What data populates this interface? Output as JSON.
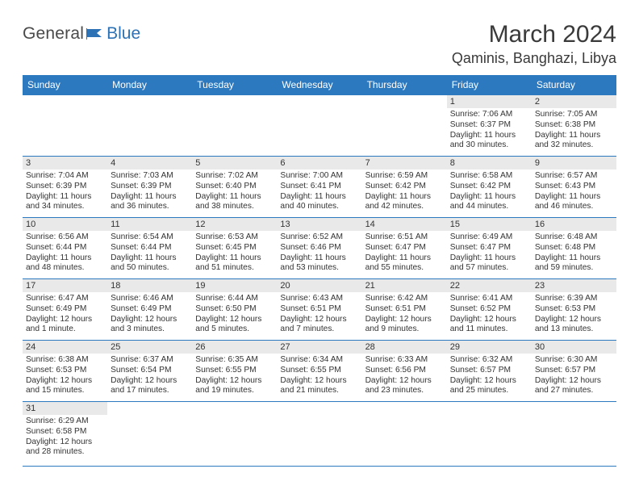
{
  "logo": {
    "text1": "General",
    "text2": "Blue"
  },
  "title": {
    "month": "March 2024",
    "location": "Qaminis, Banghazi, Libya"
  },
  "style": {
    "header_bg": "#2d79bf",
    "header_fg": "#ffffff",
    "daynum_bg": "#e9e9e9",
    "border": "#2d79bf",
    "text": "#333333",
    "logo_gray": "#4a4a4a",
    "logo_blue": "#2d72b5",
    "title_fontsize": 30,
    "location_fontsize": 18,
    "header_fontsize": 12,
    "cell_fontsize": 10.2
  },
  "weekdays": [
    "Sunday",
    "Monday",
    "Tuesday",
    "Wednesday",
    "Thursday",
    "Friday",
    "Saturday"
  ],
  "weeks": [
    [
      null,
      null,
      null,
      null,
      null,
      {
        "n": "1",
        "rise": "7:06 AM",
        "set": "6:37 PM",
        "day": "11 hours and 30 minutes."
      },
      {
        "n": "2",
        "rise": "7:05 AM",
        "set": "6:38 PM",
        "day": "11 hours and 32 minutes."
      }
    ],
    [
      {
        "n": "3",
        "rise": "7:04 AM",
        "set": "6:39 PM",
        "day": "11 hours and 34 minutes."
      },
      {
        "n": "4",
        "rise": "7:03 AM",
        "set": "6:39 PM",
        "day": "11 hours and 36 minutes."
      },
      {
        "n": "5",
        "rise": "7:02 AM",
        "set": "6:40 PM",
        "day": "11 hours and 38 minutes."
      },
      {
        "n": "6",
        "rise": "7:00 AM",
        "set": "6:41 PM",
        "day": "11 hours and 40 minutes."
      },
      {
        "n": "7",
        "rise": "6:59 AM",
        "set": "6:42 PM",
        "day": "11 hours and 42 minutes."
      },
      {
        "n": "8",
        "rise": "6:58 AM",
        "set": "6:42 PM",
        "day": "11 hours and 44 minutes."
      },
      {
        "n": "9",
        "rise": "6:57 AM",
        "set": "6:43 PM",
        "day": "11 hours and 46 minutes."
      }
    ],
    [
      {
        "n": "10",
        "rise": "6:56 AM",
        "set": "6:44 PM",
        "day": "11 hours and 48 minutes."
      },
      {
        "n": "11",
        "rise": "6:54 AM",
        "set": "6:44 PM",
        "day": "11 hours and 50 minutes."
      },
      {
        "n": "12",
        "rise": "6:53 AM",
        "set": "6:45 PM",
        "day": "11 hours and 51 minutes."
      },
      {
        "n": "13",
        "rise": "6:52 AM",
        "set": "6:46 PM",
        "day": "11 hours and 53 minutes."
      },
      {
        "n": "14",
        "rise": "6:51 AM",
        "set": "6:47 PM",
        "day": "11 hours and 55 minutes."
      },
      {
        "n": "15",
        "rise": "6:49 AM",
        "set": "6:47 PM",
        "day": "11 hours and 57 minutes."
      },
      {
        "n": "16",
        "rise": "6:48 AM",
        "set": "6:48 PM",
        "day": "11 hours and 59 minutes."
      }
    ],
    [
      {
        "n": "17",
        "rise": "6:47 AM",
        "set": "6:49 PM",
        "day": "12 hours and 1 minute."
      },
      {
        "n": "18",
        "rise": "6:46 AM",
        "set": "6:49 PM",
        "day": "12 hours and 3 minutes."
      },
      {
        "n": "19",
        "rise": "6:44 AM",
        "set": "6:50 PM",
        "day": "12 hours and 5 minutes."
      },
      {
        "n": "20",
        "rise": "6:43 AM",
        "set": "6:51 PM",
        "day": "12 hours and 7 minutes."
      },
      {
        "n": "21",
        "rise": "6:42 AM",
        "set": "6:51 PM",
        "day": "12 hours and 9 minutes."
      },
      {
        "n": "22",
        "rise": "6:41 AM",
        "set": "6:52 PM",
        "day": "12 hours and 11 minutes."
      },
      {
        "n": "23",
        "rise": "6:39 AM",
        "set": "6:53 PM",
        "day": "12 hours and 13 minutes."
      }
    ],
    [
      {
        "n": "24",
        "rise": "6:38 AM",
        "set": "6:53 PM",
        "day": "12 hours and 15 minutes."
      },
      {
        "n": "25",
        "rise": "6:37 AM",
        "set": "6:54 PM",
        "day": "12 hours and 17 minutes."
      },
      {
        "n": "26",
        "rise": "6:35 AM",
        "set": "6:55 PM",
        "day": "12 hours and 19 minutes."
      },
      {
        "n": "27",
        "rise": "6:34 AM",
        "set": "6:55 PM",
        "day": "12 hours and 21 minutes."
      },
      {
        "n": "28",
        "rise": "6:33 AM",
        "set": "6:56 PM",
        "day": "12 hours and 23 minutes."
      },
      {
        "n": "29",
        "rise": "6:32 AM",
        "set": "6:57 PM",
        "day": "12 hours and 25 minutes."
      },
      {
        "n": "30",
        "rise": "6:30 AM",
        "set": "6:57 PM",
        "day": "12 hours and 27 minutes."
      }
    ],
    [
      {
        "n": "31",
        "rise": "6:29 AM",
        "set": "6:58 PM",
        "day": "12 hours and 28 minutes."
      },
      null,
      null,
      null,
      null,
      null,
      null
    ]
  ],
  "labels": {
    "sunrise": "Sunrise:",
    "sunset": "Sunset:",
    "daylight": "Daylight:"
  }
}
